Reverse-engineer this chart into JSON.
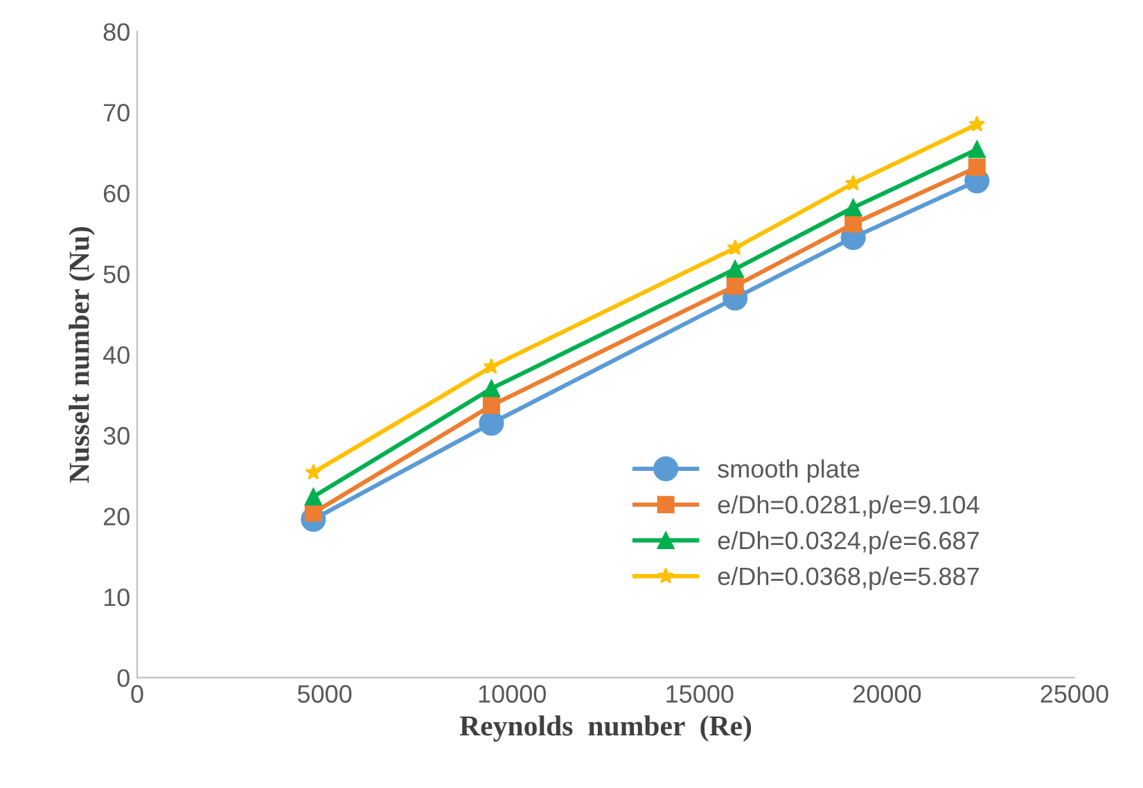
{
  "chart_data": {
    "type": "line",
    "xlabel": "Reynolds  number  (Re)",
    "ylabel": "Nusselt number (Nu)",
    "x": [
      4700,
      9450,
      15950,
      19100,
      22400
    ],
    "series": [
      {
        "name": "smooth plate",
        "color": "#5b9bd5",
        "marker": "circle",
        "values": [
          19.6,
          31.5,
          47.0,
          54.5,
          61.5
        ]
      },
      {
        "name": "e/Dh=0.0281,p/e=9.104",
        "color": "#ed7d31",
        "marker": "square",
        "values": [
          20.4,
          33.7,
          48.5,
          56.2,
          63.2
        ]
      },
      {
        "name": "e/Dh=0.0324,p/e=6.687",
        "color": "#00b050",
        "marker": "triangle",
        "values": [
          22.4,
          35.8,
          50.6,
          58.2,
          65.4
        ]
      },
      {
        "name": "e/Dh=0.0368,p/e=5.887",
        "color": "#ffc000",
        "marker": "star",
        "values": [
          25.4,
          38.5,
          53.2,
          61.2,
          68.5
        ]
      }
    ],
    "xlim": [
      0,
      25000
    ],
    "xticks": [
      0,
      5000,
      10000,
      15000,
      20000,
      25000
    ],
    "ylim": [
      0,
      80
    ],
    "yticks": [
      0,
      10,
      20,
      30,
      40,
      50,
      60,
      70,
      80
    ],
    "grid": false,
    "legend": "bottom right",
    "line_style": "solid"
  }
}
